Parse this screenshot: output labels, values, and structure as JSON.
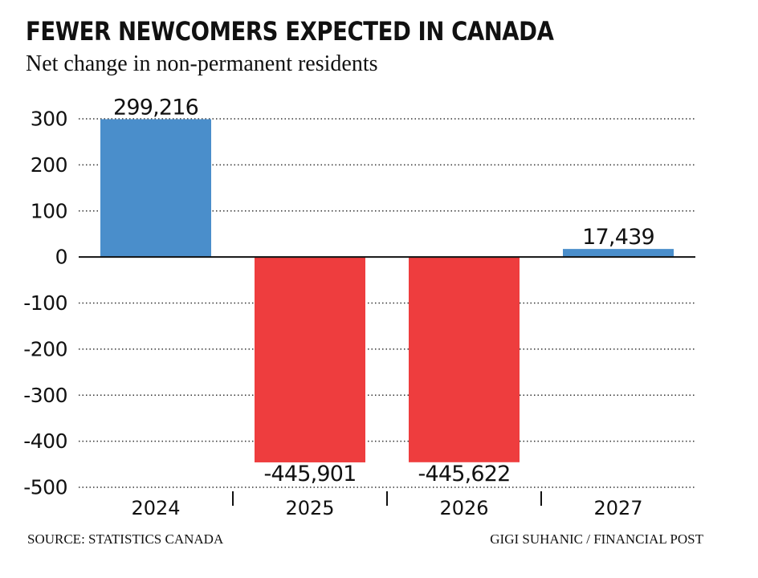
{
  "title": "FEWER NEWCOMERS EXPECTED IN CANADA",
  "subtitle": "Net change in non-permanent residents",
  "source": "SOURCE: STATISTICS CANADA",
  "credit": "GIGI SUHANIC / FINANCIAL POST",
  "chart_data": {
    "type": "bar",
    "categories": [
      "2024",
      "2025",
      "2026",
      "2027"
    ],
    "values": [
      299216,
      -445901,
      -445622,
      17439
    ],
    "data_labels": [
      "299,216",
      "-445,901",
      "-445,622",
      "17,439"
    ],
    "y_ticks": [
      300,
      200,
      100,
      0,
      -100,
      -200,
      -300,
      -400,
      -500
    ],
    "y_unit_multiplier": 1000,
    "ylim": [
      -500,
      300
    ],
    "grid": "dotted horizontal",
    "bar_colors": [
      "#4a8ecb",
      "#ee3d3e",
      "#ee3d3e",
      "#4a8ecb"
    ],
    "axis_color": "#111111"
  }
}
